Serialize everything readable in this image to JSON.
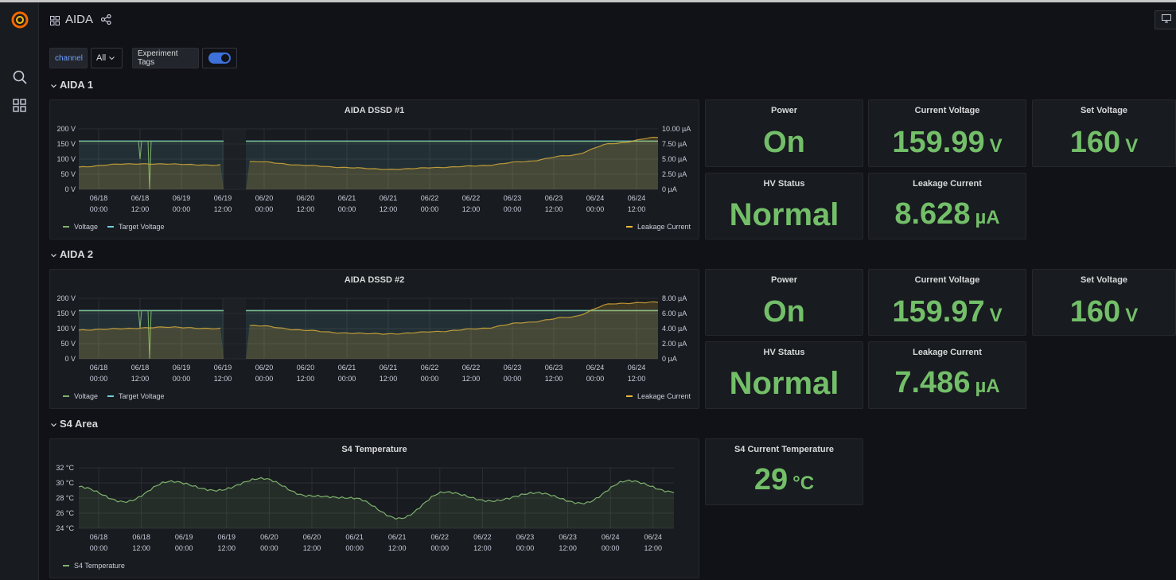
{
  "header": {
    "title": "AIDA"
  },
  "variables": {
    "channel_label": "channel",
    "channel_value": "All",
    "tags_label": "Experiment Tags",
    "tags_enabled": true
  },
  "rows": [
    {
      "title": "AIDA 1"
    },
    {
      "title": "AIDA 2"
    },
    {
      "title": "S4 Area"
    }
  ],
  "panels": {
    "dssd1": {
      "title": "AIDA DSSD #1"
    },
    "dssd2": {
      "title": "AIDA DSSD #2"
    },
    "temp": {
      "title": "S4 Temperature"
    }
  },
  "stats": {
    "aida1": {
      "power": {
        "title": "Power",
        "value": "On"
      },
      "current_voltage": {
        "title": "Current Voltage",
        "value": "159.99",
        "unit": "V"
      },
      "set_voltage": {
        "title": "Set Voltage",
        "value": "160",
        "unit": "V"
      },
      "hv_status": {
        "title": "HV Status",
        "value": "Normal"
      },
      "leakage": {
        "title": "Leakage Current",
        "value": "8.628",
        "unit": "µA"
      }
    },
    "aida2": {
      "power": {
        "title": "Power",
        "value": "On"
      },
      "current_voltage": {
        "title": "Current Voltage",
        "value": "159.97",
        "unit": "V"
      },
      "set_voltage": {
        "title": "Set Voltage",
        "value": "160",
        "unit": "V"
      },
      "hv_status": {
        "title": "HV Status",
        "value": "Normal"
      },
      "leakage": {
        "title": "Leakage Current",
        "value": "7.486",
        "unit": "µA"
      }
    },
    "s4": {
      "temp": {
        "title": "S4 Current Temperature",
        "value": "29",
        "unit": "°C"
      }
    }
  },
  "colors": {
    "voltage": "#7eb26d",
    "target": "#6ed0e0",
    "leakage": "#eab839",
    "stat_green": "#73bf69",
    "accent_blue": "#3d71d9"
  },
  "chart_data": [
    {
      "type": "line",
      "title": "AIDA DSSD #1",
      "x": [
        "06/18 00:00",
        "06/18 12:00",
        "06/19 00:00",
        "06/19 12:00",
        "06/20 00:00",
        "06/20 12:00",
        "06/21 00:00",
        "06/21 12:00",
        "06/22 00:00",
        "06/22 12:00",
        "06/23 00:00",
        "06/23 12:00",
        "06/24 00:00",
        "06/24 12:00"
      ],
      "y_left_ticks": [
        "200 V",
        "150 V",
        "100 V",
        "50 V",
        "0 V"
      ],
      "y_right_ticks": [
        "10.00 µA",
        "7.50 µA",
        "5.00 µA",
        "2.50 µA",
        "0 µA"
      ],
      "ylim_left": [
        0,
        200
      ],
      "ylim_right": [
        0,
        10
      ],
      "series": [
        {
          "name": "Voltage",
          "axis": "left",
          "values": [
            160,
            160,
            160,
            160,
            160,
            160,
            160,
            160,
            160,
            160,
            160,
            160,
            160,
            160
          ]
        },
        {
          "name": "Target Voltage",
          "axis": "left",
          "values": [
            160,
            160,
            160,
            160,
            160,
            160,
            160,
            160,
            160,
            160,
            160,
            160,
            160,
            160
          ]
        },
        {
          "name": "Leakage Current",
          "axis": "right",
          "values": [
            3.7,
            4.2,
            4.2,
            4.0,
            4.6,
            4.0,
            3.6,
            3.3,
            3.6,
            3.9,
            4.6,
            5.6,
            7.6,
            8.6
          ]
        }
      ],
      "legend_left": [
        "Voltage",
        "Target Voltage"
      ],
      "legend_right": [
        "Leakage Current"
      ]
    },
    {
      "type": "line",
      "title": "AIDA DSSD #2",
      "x": [
        "06/18 00:00",
        "06/18 12:00",
        "06/19 00:00",
        "06/19 12:00",
        "06/20 00:00",
        "06/20 12:00",
        "06/21 00:00",
        "06/21 12:00",
        "06/22 00:00",
        "06/22 12:00",
        "06/23 00:00",
        "06/23 12:00",
        "06/24 00:00",
        "06/24 12:00"
      ],
      "y_left_ticks": [
        "200 V",
        "150 V",
        "100 V",
        "50 V",
        "0 V"
      ],
      "y_right_ticks": [
        "8.00 µA",
        "6.00 µA",
        "4.00 µA",
        "2.00 µA",
        "0 µA"
      ],
      "ylim_left": [
        0,
        200
      ],
      "ylim_right": [
        0,
        8
      ],
      "series": [
        {
          "name": "Voltage",
          "axis": "left",
          "values": [
            160,
            160,
            160,
            160,
            160,
            160,
            160,
            160,
            160,
            160,
            160,
            160,
            160,
            160
          ]
        },
        {
          "name": "Target Voltage",
          "axis": "left",
          "values": [
            160,
            160,
            160,
            160,
            160,
            160,
            160,
            160,
            160,
            160,
            160,
            160,
            160,
            160
          ]
        },
        {
          "name": "Leakage Current",
          "axis": "right",
          "values": [
            3.8,
            4.0,
            4.2,
            4.0,
            4.4,
            3.8,
            3.4,
            3.3,
            3.6,
            4.0,
            4.8,
            5.5,
            7.3,
            7.5
          ]
        }
      ],
      "legend_left": [
        "Voltage",
        "Target Voltage"
      ],
      "legend_right": [
        "Leakage Current"
      ]
    },
    {
      "type": "line",
      "title": "S4 Temperature",
      "x": [
        "06/18 00:00",
        "06/18 12:00",
        "06/19 00:00",
        "06/19 12:00",
        "06/20 00:00",
        "06/20 12:00",
        "06/21 00:00",
        "06/21 12:00",
        "06/22 00:00",
        "06/22 12:00",
        "06/23 00:00",
        "06/23 12:00",
        "06/24 00:00",
        "06/24 12:00"
      ],
      "y_ticks": [
        "32 °C",
        "30 °C",
        "28 °C",
        "26 °C",
        "24 °C"
      ],
      "ylim": [
        24,
        32
      ],
      "series": [
        {
          "name": "S4 Temperature",
          "values": [
            29.5,
            27.5,
            30.2,
            29.0,
            30.6,
            28.3,
            28.0,
            25.3,
            28.8,
            27.6,
            28.7,
            27.3,
            30.3,
            28.8
          ]
        }
      ]
    }
  ]
}
